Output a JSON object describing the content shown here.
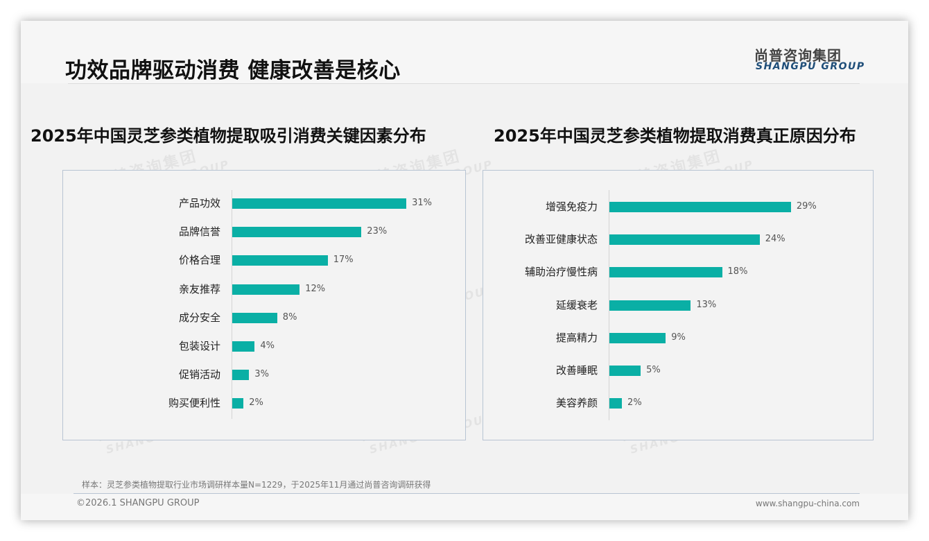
{
  "header": {
    "title": "功效品牌驱动消费 健康改善是核心",
    "logo_cn": "尚普咨询集团",
    "logo_en": "SHANGPU GROUP"
  },
  "watermark": {
    "cn": "尚普咨询集团",
    "en": "SHANGPU GROUP"
  },
  "chart_data": [
    {
      "type": "bar",
      "orientation": "horizontal",
      "title": "2025年中国灵芝参类植物提取吸引消费关键因素分布",
      "categories": [
        "产品功效",
        "品牌信誉",
        "价格合理",
        "亲友推荐",
        "成分安全",
        "包装设计",
        "促销活动",
        "购买便利性"
      ],
      "values": [
        31,
        23,
        17,
        12,
        8,
        4,
        3,
        2
      ],
      "labels": [
        "31%",
        "23%",
        "17%",
        "12%",
        "8%",
        "4%",
        "3%",
        "2%"
      ],
      "unit": "%",
      "color": "#0aafa5",
      "xlabel": "",
      "ylabel": "",
      "grid": false,
      "legend": "none"
    },
    {
      "type": "bar",
      "orientation": "horizontal",
      "title": "2025年中国灵芝参类植物提取消费真正原因分布",
      "categories": [
        "增强免疫力",
        "改善亚健康状态",
        "辅助治疗慢性病",
        "延缓衰老",
        "提高精力",
        "改善睡眠",
        "美容养颜"
      ],
      "values": [
        29,
        24,
        18,
        13,
        9,
        5,
        2
      ],
      "labels": [
        "29%",
        "24%",
        "18%",
        "13%",
        "9%",
        "5%",
        "2%"
      ],
      "unit": "%",
      "color": "#0aafa5",
      "xlabel": "",
      "ylabel": "",
      "grid": false,
      "legend": "none"
    }
  ],
  "footer": {
    "footnote": "样本：灵芝参类植物提取行业市场调研样本量N=1229，于2025年11月通过尚普咨询调研获得",
    "copyright": "©2026.1 SHANGPU GROUP",
    "website": "www.shangpu-china.com"
  },
  "colors": {
    "bar": "#0aafa5",
    "logo_en": "#1f4e79",
    "panel_border": "#b8c4d3"
  }
}
